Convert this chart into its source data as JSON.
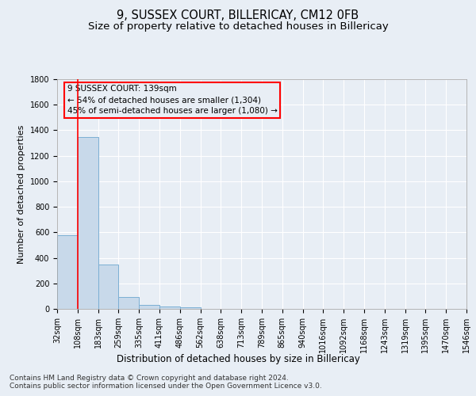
{
  "title": "9, SUSSEX COURT, BILLERICAY, CM12 0FB",
  "subtitle": "Size of property relative to detached houses in Billericay",
  "xlabel": "Distribution of detached houses by size in Billericay",
  "ylabel": "Number of detached properties",
  "footnote1": "Contains HM Land Registry data © Crown copyright and database right 2024.",
  "footnote2": "Contains public sector information licensed under the Open Government Licence v3.0.",
  "bin_labels": [
    "32sqm",
    "108sqm",
    "183sqm",
    "259sqm",
    "335sqm",
    "411sqm",
    "486sqm",
    "562sqm",
    "638sqm",
    "713sqm",
    "789sqm",
    "865sqm",
    "940sqm",
    "1016sqm",
    "1092sqm",
    "1168sqm",
    "1243sqm",
    "1319sqm",
    "1395sqm",
    "1470sqm",
    "1546sqm"
  ],
  "bar_values": [
    580,
    1350,
    350,
    95,
    30,
    20,
    15,
    0,
    0,
    0,
    0,
    0,
    0,
    0,
    0,
    0,
    0,
    0,
    0,
    0
  ],
  "bar_color": "#c8d9ea",
  "bar_edge_color": "#7bafd4",
  "ylim": [
    0,
    1800
  ],
  "yticks": [
    0,
    200,
    400,
    600,
    800,
    1000,
    1200,
    1400,
    1600,
    1800
  ],
  "red_line_x": 1,
  "annotation_line1": "9 SUSSEX COURT: 139sqm",
  "annotation_line2": "← 54% of detached houses are smaller (1,304)",
  "annotation_line3": "45% of semi-detached houses are larger (1,080) →",
  "bg_color": "#e8eef5",
  "grid_color": "white",
  "title_fontsize": 10.5,
  "subtitle_fontsize": 9.5,
  "tick_fontsize": 7,
  "ylabel_fontsize": 8,
  "xlabel_fontsize": 8.5,
  "footnote_fontsize": 6.5
}
